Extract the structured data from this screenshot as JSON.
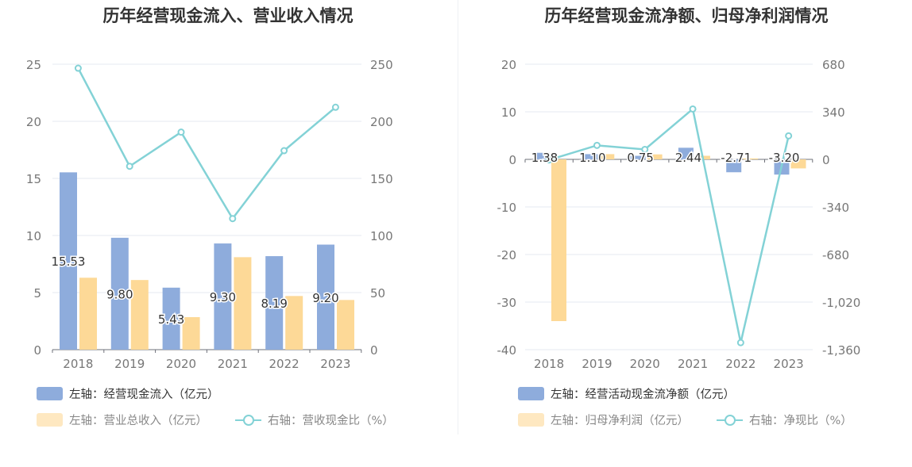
{
  "colors": {
    "bar1": "#8eacdc",
    "bar2": "#fdd997",
    "line": "#83d2d6",
    "axis_text": "#777777",
    "grid": "#e6eaf2"
  },
  "chart_data": [
    {
      "type": "bar",
      "title": "历年经营现金流入、营业收入情况",
      "categories": [
        "2018",
        "2019",
        "2020",
        "2021",
        "2022",
        "2023"
      ],
      "y_left": {
        "min": 0,
        "max": 25,
        "ticks": [
          "0",
          "5",
          "10",
          "15",
          "20",
          "25"
        ]
      },
      "y_right": {
        "min": 0,
        "max": 250,
        "ticks": [
          "0",
          "50",
          "100",
          "150",
          "200",
          "250"
        ]
      },
      "series": [
        {
          "name": "左轴：经营现金流入（亿元）",
          "type": "bar",
          "axis": "left",
          "values": [
            15.53,
            9.8,
            5.43,
            9.3,
            8.19,
            9.2
          ],
          "labels": [
            "15.53",
            "9.80",
            "5.43",
            "9.30",
            "8.19",
            "9.20"
          ]
        },
        {
          "name": "左轴：营业总收入（亿元）",
          "type": "bar",
          "axis": "left",
          "values": [
            6.3,
            6.1,
            2.85,
            8.1,
            4.7,
            4.35
          ]
        },
        {
          "name": "右轴：营收现金比（%）",
          "type": "line",
          "axis": "right",
          "values": [
            246.5,
            160.6,
            190.5,
            114.8,
            174.3,
            212.3
          ]
        }
      ],
      "legend_position": "bottom"
    },
    {
      "type": "bar",
      "title": "历年经营现金流净额、归母净利润情况",
      "categories": [
        "2018",
        "2019",
        "2020",
        "2021",
        "2022",
        "2023"
      ],
      "y_left": {
        "min": -40,
        "max": 20,
        "ticks": [
          "-40",
          "-30",
          "-20",
          "-10",
          "0",
          "10",
          "20"
        ]
      },
      "y_right": {
        "min": -1360,
        "max": 680,
        "ticks": [
          "-1,360",
          "-1,020",
          "-680",
          "-340",
          "0",
          "340",
          "680"
        ]
      },
      "series": [
        {
          "name": "左轴：经营活动现金流净额（亿元）",
          "type": "bar",
          "axis": "left",
          "values": [
            1.38,
            1.1,
            0.75,
            2.44,
            -2.71,
            -3.2
          ],
          "labels": [
            "1.38",
            "1.10",
            "0.75",
            "2.44",
            "-2.71",
            "-3.20"
          ]
        },
        {
          "name": "左轴：归母净利润（亿元）",
          "type": "bar",
          "axis": "left",
          "values": [
            -34.0,
            1.1,
            1.05,
            0.75,
            0.2,
            -1.9
          ]
        },
        {
          "name": "右轴：净现比（%）",
          "type": "line",
          "axis": "right",
          "values": [
            -4,
            100,
            71,
            360,
            -1310,
            168
          ]
        }
      ],
      "legend_position": "bottom"
    }
  ]
}
